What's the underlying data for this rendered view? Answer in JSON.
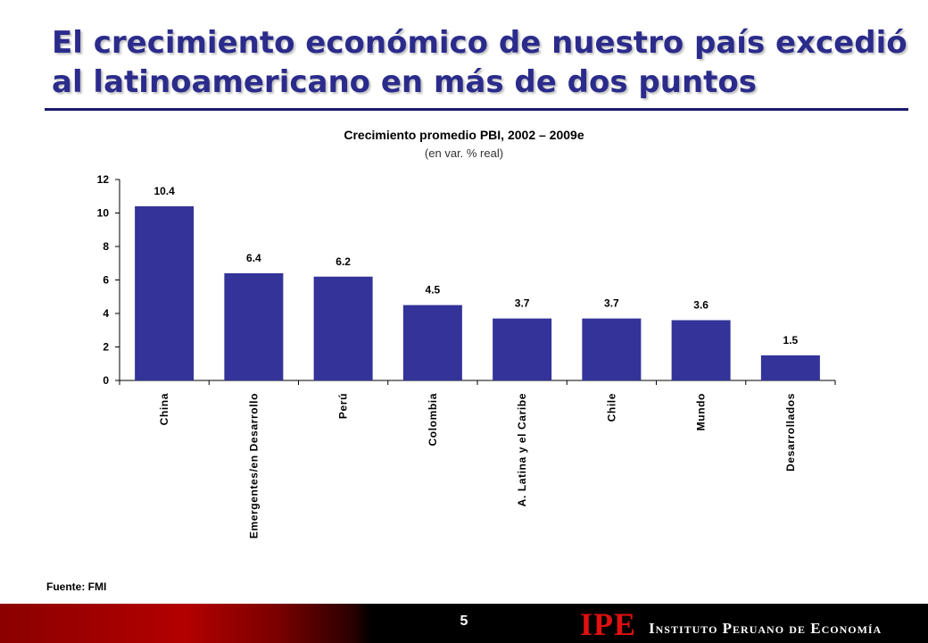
{
  "slide": {
    "title": "El crecimiento económico de nuestro país excedió al latinoamericano en más de dos puntos",
    "source": "Fuente: FMI",
    "page_number": "5",
    "logo_mark": "IPE",
    "logo_text": "Instituto Peruano de Economía"
  },
  "colors": {
    "bar": "#333399",
    "title": "#2b2b8c",
    "footer_red": "#b30000"
  },
  "chart_data": {
    "type": "bar",
    "title": "Crecimiento promedio PBI, 2002 – 2009e",
    "subtitle": "(en var. % real)",
    "categories": [
      "China",
      "Emergentes/en Desarrollo",
      "Perú",
      "Colombia",
      "A. Latina y el Caribe",
      "Chile",
      "Mundo",
      "Desarrollados"
    ],
    "values": [
      10.4,
      6.4,
      6.2,
      4.5,
      3.7,
      3.7,
      3.6,
      1.5
    ],
    "value_labels": [
      "10.4",
      "6.4",
      "6.2",
      "4.5",
      "3.7",
      "3.7",
      "3.6",
      "1.5"
    ],
    "yticks": [
      0,
      2,
      4,
      6,
      8,
      10,
      12
    ],
    "ylim": [
      0,
      12
    ],
    "grid": false,
    "legend": "none"
  }
}
